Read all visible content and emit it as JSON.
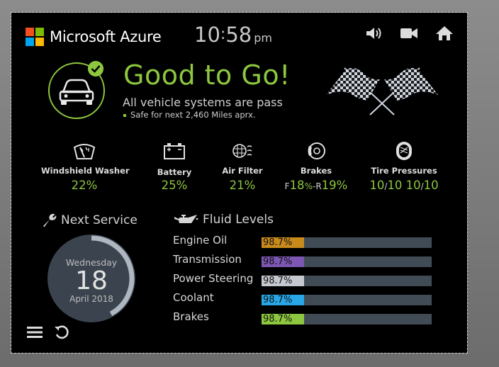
{
  "header": {
    "brand": "Microsoft Azure",
    "logo_colors": [
      "#f25022",
      "#7fba00",
      "#00a4ef",
      "#ffb900"
    ],
    "time_hour": "10",
    "time_minute": "58",
    "time_ampm": "pm",
    "icons": [
      "volume-icon",
      "video-camera-icon",
      "home-icon"
    ]
  },
  "status": {
    "headline": "Good to Go!",
    "subline": "All vehicle systems are pass",
    "note": "Safe for next 2,460 Miles aprx.",
    "accent_color": "#8dc63f"
  },
  "metrics": {
    "washer": {
      "label": "Windshield Washer",
      "value": "22%"
    },
    "battery": {
      "label": "Battery",
      "value": "25%"
    },
    "air_filter": {
      "label": "Air Filter",
      "value": "21%"
    },
    "brakes": {
      "label": "Brakes",
      "front_prefix": "F",
      "front": "18",
      "rear_prefix": "R",
      "rear": "19",
      "unit": "%",
      "separator": "-"
    },
    "tires": {
      "label": "Tire Pressures",
      "v1": "10",
      "v2": "10",
      "v3": "10",
      "v4": "10",
      "slash": "/"
    }
  },
  "service": {
    "title": "Next Service",
    "weekday": "Wednesday",
    "day": "18",
    "month_year": "April 2018",
    "progress_fraction": 0.42
  },
  "fluids": {
    "title": "Fluid Levels",
    "items": [
      {
        "label": "Engine Oil",
        "value": "98.7%",
        "color": "#c98a1c"
      },
      {
        "label": "Transmission",
        "value": "98.7%",
        "color": "#7c57b3"
      },
      {
        "label": "Power Steering",
        "value": "98.7%",
        "color": "#c5c9cf"
      },
      {
        "label": "Coolant",
        "value": "98.7%",
        "color": "#29a6e6"
      },
      {
        "label": "Brakes",
        "value": "98.7%",
        "color": "#8dc63f"
      }
    ]
  }
}
